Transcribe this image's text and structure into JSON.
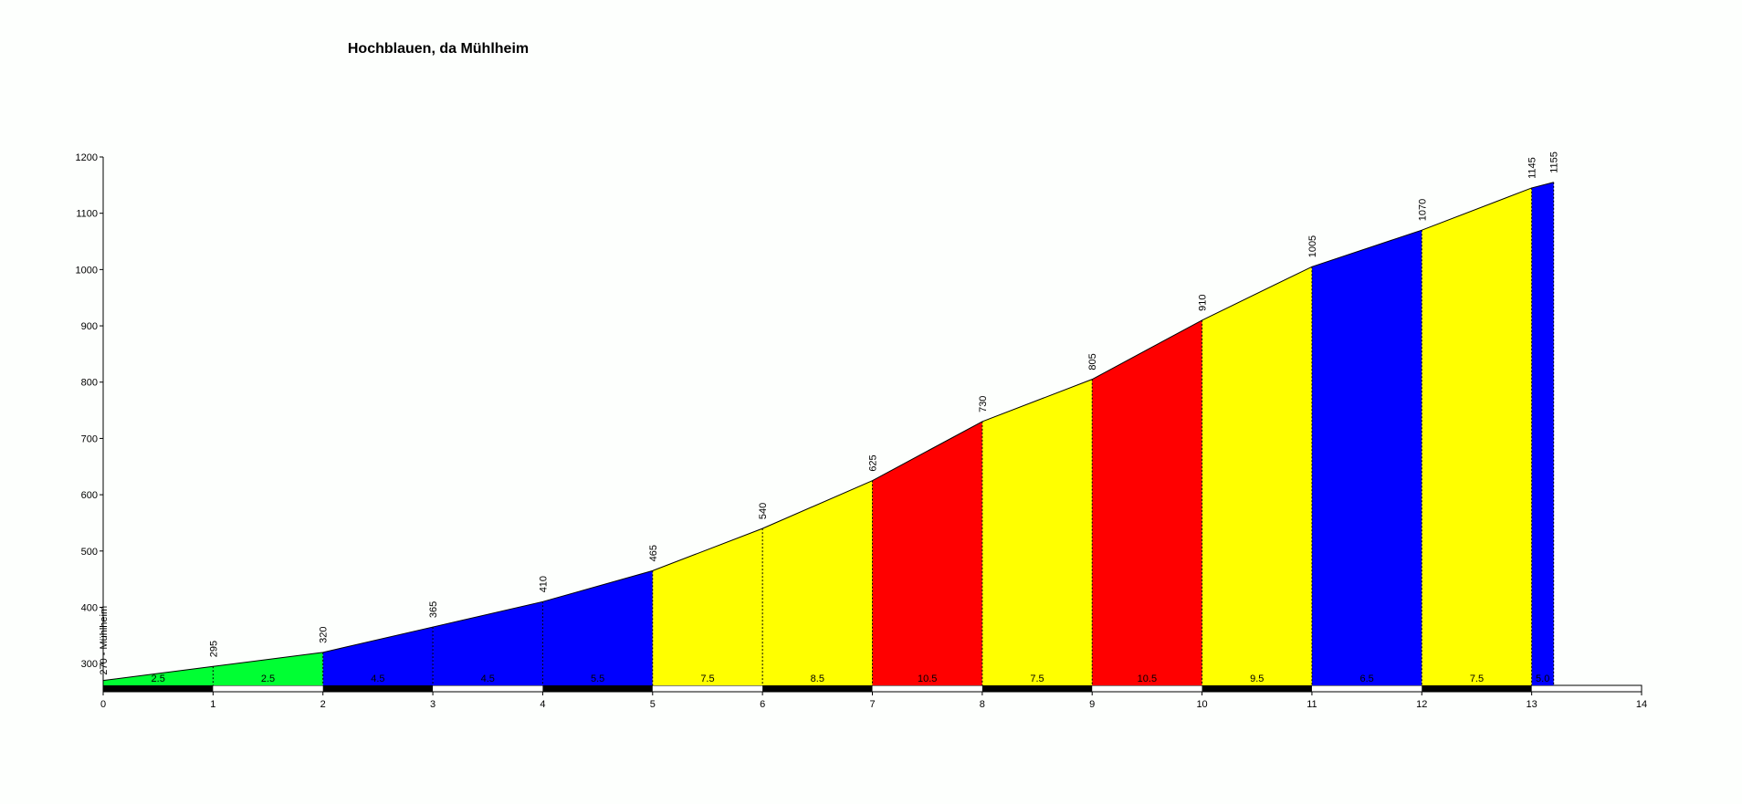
{
  "chart_data": {
    "type": "area",
    "title": "Hochblauen, da Mühlheim",
    "x": [
      0,
      1,
      2,
      3,
      4,
      5,
      6,
      7,
      8,
      9,
      10,
      11,
      12,
      13,
      13.2
    ],
    "values": [
      270,
      295,
      320,
      365,
      410,
      465,
      540,
      625,
      730,
      805,
      910,
      1005,
      1070,
      1145,
      1155
    ],
    "value_labels": [
      "270 - Mühlheim",
      "295",
      "320",
      "365",
      "410",
      "465",
      "540",
      "625",
      "730",
      "805",
      "910",
      "1005",
      "1070",
      "1145",
      "1155"
    ],
    "gradients": [
      2.5,
      2.5,
      4.5,
      4.5,
      5.5,
      7.5,
      8.5,
      10.5,
      7.5,
      10.5,
      9.5,
      6.5,
      7.5,
      5
    ],
    "gradient_labels": [
      "2.5",
      "2.5",
      "4.5",
      "4.5",
      "5.5",
      "7.5",
      "8.5",
      "10.5",
      "7.5",
      "10.5",
      "9.5",
      "6.5",
      "7.5",
      "5.0"
    ],
    "segment_colors": [
      "#00ff33",
      "#00ff33",
      "#0000ff",
      "#0000ff",
      "#0000ff",
      "#ffff00",
      "#ffff00",
      "#ff0000",
      "#ffff00",
      "#ff0000",
      "#ffff00",
      "#0000ff",
      "#ffff00",
      "#0000ff"
    ],
    "xlim": [
      0,
      14
    ],
    "xticks": [
      0,
      1,
      2,
      3,
      4,
      5,
      6,
      7,
      8,
      9,
      10,
      11,
      12,
      13,
      14
    ],
    "ylim": [
      250,
      1200
    ],
    "yticks": [
      300,
      400,
      500,
      600,
      700,
      800,
      900,
      1000,
      1100,
      1200
    ]
  }
}
